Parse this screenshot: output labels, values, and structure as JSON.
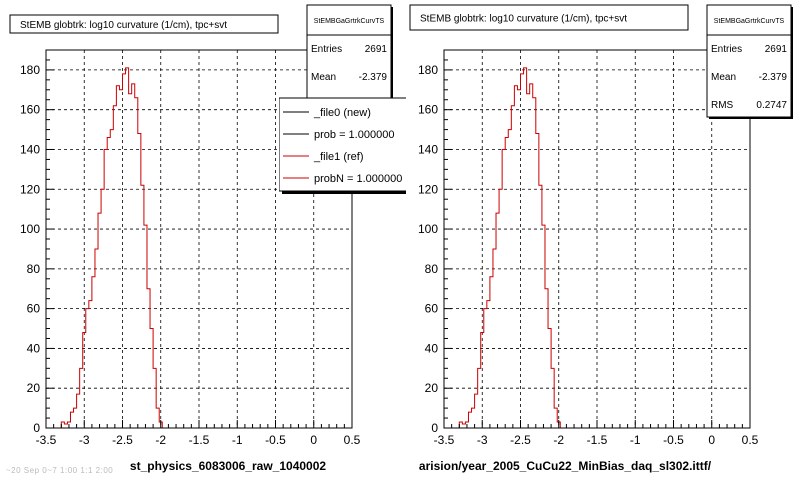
{
  "colors": {
    "background": "#ffffff",
    "reference_line": "#cc0000",
    "new_line": "#000000",
    "frame": "#000000",
    "grid": "#000000"
  },
  "footer_note": "~20 Sep 0~7 1:00 1:1 2:00",
  "chart_data": [
    {
      "type": "line",
      "step": true,
      "title": "StEMB globtrk: log10 curvature (1/cm), tpc+svt",
      "xlabel": "st_physics_6083006_raw_1040002",
      "ylabel": "",
      "xlim": [
        -3.5,
        0.5
      ],
      "ylim": [
        0,
        190
      ],
      "x_ticks": [
        "-3.5",
        "-3",
        "-2.5",
        "-2",
        "-1.5",
        "-1",
        "-0.5",
        "0",
        "0.5"
      ],
      "y_ticks": [
        "0",
        "20",
        "40",
        "60",
        "80",
        "100",
        "120",
        "140",
        "160",
        "180"
      ],
      "grid": true,
      "stats_box": {
        "name": "StEMBGaGrtrkCurvTS",
        "rows": [
          {
            "label": "Entries",
            "value": "2691"
          },
          {
            "label": "Mean",
            "value": "-2.379"
          }
        ]
      },
      "legend": {
        "placement": "top-right",
        "entries": [
          {
            "label": "_file0 (new)",
            "color": "#000000"
          },
          {
            "label": "prob = 1.000000",
            "color": "#000000"
          },
          {
            "label": "_file1 (ref)",
            "color": "#cc0000"
          },
          {
            "label": "probN = 1.000000",
            "color": "#cc0000"
          }
        ]
      },
      "bin_width": 0.04,
      "bins_start": -3.3,
      "series": [
        {
          "color": "#cc0000",
          "values": [
            3,
            2,
            3,
            8,
            10,
            17,
            30,
            48,
            60,
            64,
            76,
            90,
            108,
            120,
            140,
            146,
            150,
            162,
            172,
            170,
            178,
            181,
            168,
            173,
            166,
            148,
            122,
            102,
            70,
            50,
            30,
            10,
            3
          ]
        }
      ]
    },
    {
      "type": "line",
      "step": true,
      "title": "StEMB globtrk: log10 curvature (1/cm), tpc+svt",
      "xlabel": "arision/year_2005_CuCu22_MinBias_daq_sl302.ittf/",
      "ylabel": "",
      "xlim": [
        -3.5,
        0.5
      ],
      "ylim": [
        0,
        190
      ],
      "x_ticks": [
        "-3.5",
        "-3",
        "-2.5",
        "-2",
        "-1.5",
        "-1",
        "-0.5",
        "0",
        "0.5"
      ],
      "y_ticks": [
        "0",
        "20",
        "40",
        "60",
        "80",
        "100",
        "120",
        "140",
        "160",
        "180"
      ],
      "grid": true,
      "stats_box": {
        "name": "StEMBGaGrtrkCurvTS",
        "rows": [
          {
            "label": "Entries",
            "value": "2691"
          },
          {
            "label": "Mean",
            "value": "-2.379"
          },
          {
            "label": "RMS",
            "value": "0.2747"
          }
        ]
      },
      "bin_width": 0.04,
      "bins_start": -3.3,
      "series": [
        {
          "color": "#cc0000",
          "values": [
            3,
            2,
            3,
            8,
            10,
            17,
            30,
            48,
            60,
            64,
            76,
            90,
            108,
            120,
            140,
            146,
            150,
            162,
            172,
            170,
            178,
            181,
            168,
            173,
            166,
            148,
            122,
            102,
            70,
            50,
            30,
            10,
            3
          ]
        }
      ]
    }
  ]
}
